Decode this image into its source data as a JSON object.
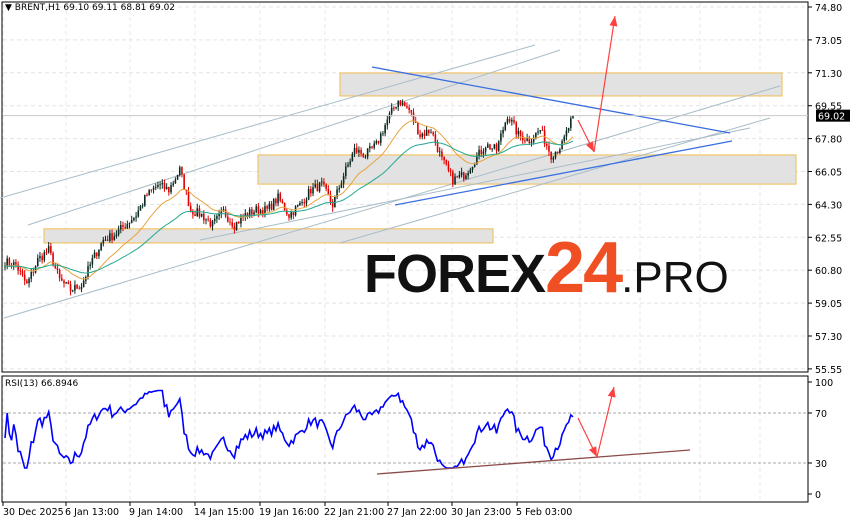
{
  "header": {
    "symbol": "BRENT,H1",
    "ohlc": "69.10 69.11 68.81 69.02",
    "collapse_icon": "triangle-down-icon"
  },
  "rsi": {
    "label": "RSI(13) 66.8946",
    "levels": [
      70,
      30
    ],
    "axis_labels": [
      "100",
      "70",
      "30",
      "0"
    ],
    "color": "#0000ff"
  },
  "price_axis": {
    "labels": [
      "74.80",
      "73.05",
      "71.30",
      "69.55",
      "67.80",
      "66.05",
      "64.30",
      "62.55",
      "60.80",
      "59.05",
      "57.30",
      "55.55"
    ],
    "current_price": "69.02"
  },
  "time_axis": {
    "labels": [
      "30 Dec 2025",
      "6 Jan 13:00",
      "9 Jan 14:00",
      "14 Jan 15:00",
      "19 Jan 16:00",
      "22 Jan 21:00",
      "27 Jan 22:00",
      "30 Jan 23:00",
      "5 Feb 03:00"
    ]
  },
  "watermark": {
    "part1": "FOREX",
    "part2": "24",
    "part3": ".PRO"
  },
  "colors": {
    "bull": "#0b2b22",
    "bear": "#e00000",
    "ma_fast": "#e8a33d",
    "ma_slow": "#20a890",
    "zone_border": "#f2c46b",
    "zone_fill": "#e2e2e2",
    "arrow": "#ff4040",
    "channel": "#a8bcc8",
    "trend": "#3a6fe0",
    "rsi_trend": "#8b4a4a"
  },
  "chart_data": {
    "type": "candlestick",
    "symbol": "BRENT",
    "timeframe": "H1",
    "ylim": [
      55.55,
      74.8
    ],
    "approx_closes": [
      61.24,
      61.08,
      60.01,
      61.34,
      61.87,
      60.28,
      59.75,
      60.01,
      61.34,
      62.41,
      62.67,
      63.2,
      63.74,
      64.8,
      65.33,
      65.07,
      66.13,
      64.0,
      63.74,
      63.2,
      63.9,
      63.2,
      63.74,
      64.0,
      64.0,
      64.64,
      63.74,
      64.27,
      65.07,
      65.33,
      64.27,
      65.86,
      67.19,
      66.93,
      67.46,
      68.79,
      69.85,
      69.32,
      67.99,
      68.26,
      66.66,
      65.6,
      65.86,
      66.66,
      67.46,
      67.19,
      69.06,
      67.99,
      67.73,
      68.26,
      66.93,
      67.46,
      69.02
    ],
    "zones": [
      {
        "high": 71.29,
        "low": 70.07
      },
      {
        "high": 66.93,
        "low": 65.38
      },
      {
        "high": 63.0,
        "low": 62.25
      }
    ],
    "indicators": [
      "moving average (orange)",
      "moving average (teal)",
      "RSI(13)"
    ]
  }
}
